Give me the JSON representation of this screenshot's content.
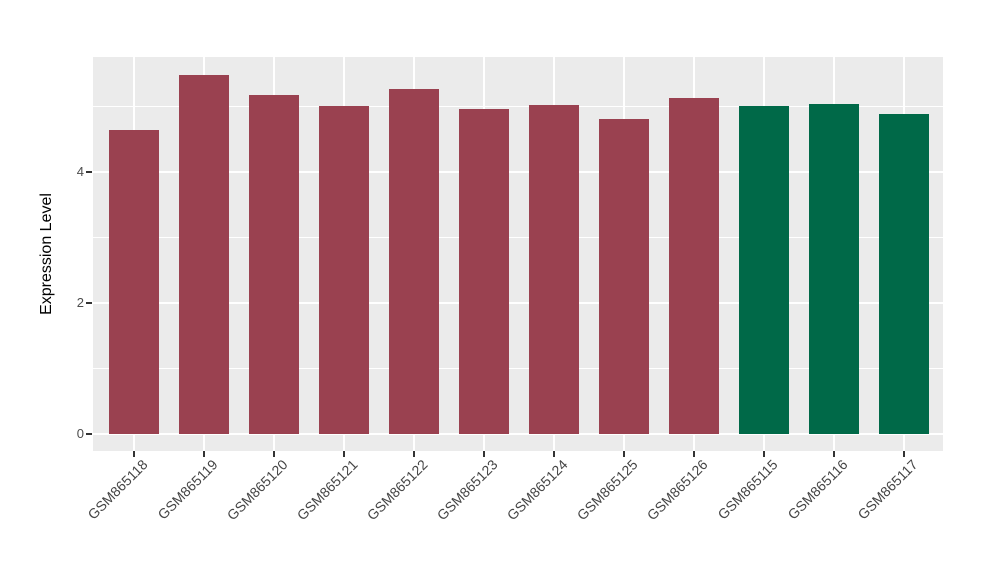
{
  "chart_data": {
    "type": "bar",
    "title": "",
    "xlabel": "",
    "ylabel": "Expression Level",
    "categories": [
      "GSM865118",
      "GSM865119",
      "GSM865120",
      "GSM865121",
      "GSM865122",
      "GSM865123",
      "GSM865124",
      "GSM865125",
      "GSM865126",
      "GSM865115",
      "GSM865116",
      "GSM865117"
    ],
    "values": [
      4.64,
      5.48,
      5.18,
      5.01,
      5.27,
      4.96,
      5.02,
      4.81,
      5.13,
      5.01,
      5.04,
      4.89
    ],
    "bar_colors": [
      "#9A4150",
      "#9A4150",
      "#9A4150",
      "#9A4150",
      "#9A4150",
      "#9A4150",
      "#9A4150",
      "#9A4150",
      "#9A4150",
      "#006948",
      "#006948",
      "#006948"
    ],
    "group_colors": {
      "samples_red": "#9A4150",
      "samples_green": "#006948"
    },
    "yticks": [
      0,
      2,
      4
    ],
    "minor_gridlines": [
      1,
      3,
      5
    ],
    "ylim": [
      0,
      5.76
    ],
    "grid": "on",
    "legend": "none",
    "style_colors": {
      "panel_background": "#EBEBEB",
      "gridline": "#FFFFFF",
      "tick_text": "#4D4D4D",
      "axis_title_text": "#000000",
      "tick_mark": "#333333"
    }
  }
}
